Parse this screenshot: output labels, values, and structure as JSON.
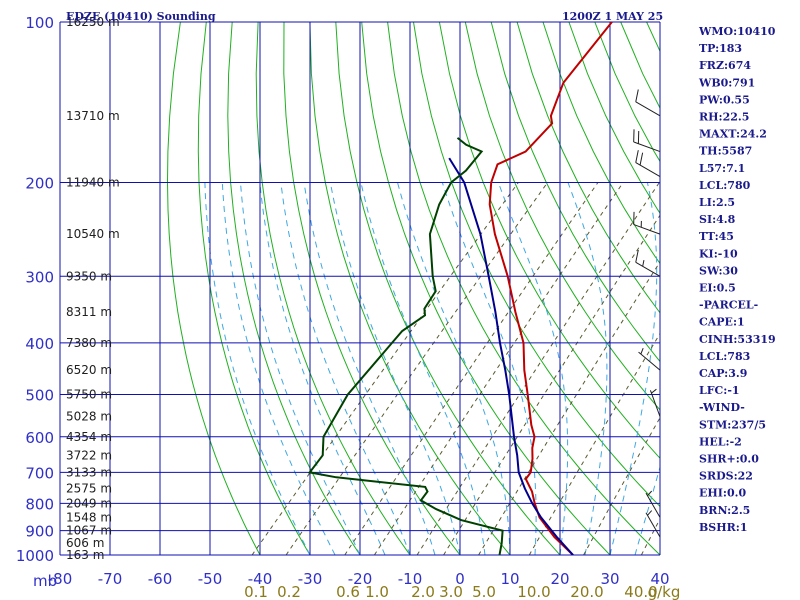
{
  "title": "EDZE (10410) Sounding",
  "time": "1200Z  1 MAY 25",
  "indices": [
    "WMO:10410",
    "TP:183",
    "FRZ:674",
    "WB0:791",
    "PW:0.55",
    "RH:22.5",
    "MAXT:24.2",
    "TH:5587",
    "L57:7.1",
    "LCL:780",
    "LI:2.5",
    "SI:4.8",
    "TT:45",
    "KI:-10",
    "SW:30",
    "EI:0.5",
    "-PARCEL-",
    "CAPE:1",
    "CINH:53319",
    "LCL:783",
    "CAP:3.9",
    "LFC:-1",
    "-WIND-",
    "STM:237/5",
    "HEL:-2",
    "SHR+:0.0",
    "SRDS:22",
    "EHI:0.0",
    "BRN:2.5",
    "BSHR:1"
  ],
  "chart_data": {
    "type": "line",
    "title": "EDZE (10410) Sounding",
    "subtitle": "1200Z  1 MAY 25",
    "xlabel": "",
    "ylabel": "mb",
    "y_scale": "log-pressure",
    "ylim": [
      1000,
      100
    ],
    "xlim": [
      -80,
      40
    ],
    "grid": true,
    "pressure_levels": [
      1000,
      900,
      800,
      700,
      600,
      500,
      400,
      300,
      200,
      100
    ],
    "pressure_tick_labels": [
      "1000",
      "900",
      "800",
      "700",
      "600",
      "500",
      "400",
      "300",
      "200",
      "100"
    ],
    "temperature_ticks": [
      -80,
      -70,
      -60,
      -50,
      -40,
      -30,
      -20,
      -10,
      0,
      10,
      20,
      30,
      40
    ],
    "temperature_tick_labels": [
      "-80",
      "-70",
      "-60",
      "-50",
      "-40",
      "-30",
      "-20",
      "-10",
      "0",
      "10",
      "20",
      "30",
      "40"
    ],
    "mixing_ratio_labels": [
      "0.1",
      "0.2",
      "0.6",
      "1.0",
      "2.0",
      "3.0",
      "5.0",
      "10.0",
      "20.0",
      "40.0",
      "g/kg"
    ],
    "height_labels": [
      {
        "p": 100,
        "label": "16250 m"
      },
      {
        "p": 150,
        "label": "13710 m"
      },
      {
        "p": 200,
        "label": "11940 m"
      },
      {
        "p": 250,
        "label": "10540 m"
      },
      {
        "p": 300,
        "label": "9350 m"
      },
      {
        "p": 350,
        "label": "8311 m"
      },
      {
        "p": 400,
        "label": "7380 m"
      },
      {
        "p": 450,
        "label": "6520 m"
      },
      {
        "p": 500,
        "label": "5750 m"
      },
      {
        "p": 550,
        "label": "5028 m"
      },
      {
        "p": 600,
        "label": "4354 m"
      },
      {
        "p": 650,
        "label": "3722 m"
      },
      {
        "p": 700,
        "label": "3133 m"
      },
      {
        "p": 750,
        "label": "2575 m"
      },
      {
        "p": 800,
        "label": "2049 m"
      },
      {
        "p": 850,
        "label": "1548 m"
      },
      {
        "p": 900,
        "label": "1067 m"
      },
      {
        "p": 950,
        "label": "606 m"
      },
      {
        "p": 1000,
        "label": "163 m"
      }
    ],
    "series": [
      {
        "color": "#c00000",
        "points": [
          [
            1000,
            22.6
          ],
          [
            925,
            15.6
          ],
          [
            850,
            9.1
          ],
          [
            800,
            5.6
          ],
          [
            760,
            2.9
          ],
          [
            720,
            -0.6
          ],
          [
            700,
            -0.8
          ],
          [
            660,
            -2.9
          ],
          [
            630,
            -4.9
          ],
          [
            600,
            -6.5
          ],
          [
            570,
            -9.3
          ],
          [
            500,
            -15.5
          ],
          [
            450,
            -20.6
          ],
          [
            400,
            -25.7
          ],
          [
            350,
            -32.9
          ],
          [
            300,
            -40.9
          ],
          [
            250,
            -51.1
          ],
          [
            220,
            -57.5
          ],
          [
            200,
            -61.2
          ],
          [
            185,
            -63.2
          ],
          [
            175,
            -59.9
          ],
          [
            155,
            -59.7
          ],
          [
            150,
            -61.3
          ],
          [
            130,
            -64.8
          ],
          [
            100,
            -66.1
          ]
        ]
      },
      {
        "color": "#00008c",
        "points": [
          [
            1000,
            22.6
          ],
          [
            925,
            16.1
          ],
          [
            850,
            9.4
          ],
          [
            800,
            5.1
          ],
          [
            750,
            0.9
          ],
          [
            700,
            -3.2
          ],
          [
            650,
            -6.6
          ],
          [
            600,
            -10.6
          ],
          [
            550,
            -14.7
          ],
          [
            500,
            -19.2
          ],
          [
            450,
            -24.4
          ],
          [
            400,
            -30.4
          ],
          [
            350,
            -36.9
          ],
          [
            300,
            -44.7
          ],
          [
            250,
            -54.0
          ],
          [
            200,
            -66.6
          ],
          [
            180,
            -74.0
          ]
        ]
      },
      {
        "color": "#004000",
        "points": [
          [
            1000,
            7.9
          ],
          [
            950,
            6.2
          ],
          [
            900,
            4.1
          ],
          [
            860,
            -6.1
          ],
          [
            820,
            -13.1
          ],
          [
            790,
            -17.7
          ],
          [
            760,
            -18.0
          ],
          [
            745,
            -19.3
          ],
          [
            715,
            -38.8
          ],
          [
            700,
            -45.0
          ],
          [
            650,
            -45.5
          ],
          [
            600,
            -48.7
          ],
          [
            500,
            -51.5
          ],
          [
            400,
            -52.0
          ],
          [
            380,
            -52.1
          ],
          [
            355,
            -50.4
          ],
          [
            345,
            -51.7
          ],
          [
            320,
            -52.6
          ],
          [
            300,
            -55.9
          ],
          [
            250,
            -64.1
          ],
          [
            220,
            -67.6
          ],
          [
            200,
            -69.2
          ],
          [
            190,
            -68.4
          ],
          [
            175,
            -68.7
          ],
          [
            170,
            -73.0
          ],
          [
            165,
            -76.0
          ]
        ]
      }
    ],
    "wind_barbs": [
      {
        "p": 150,
        "dir": 300,
        "speed": 10
      },
      {
        "p": 175,
        "dir": 290,
        "speed": 20
      },
      {
        "p": 195,
        "dir": 300,
        "speed": 20
      },
      {
        "p": 250,
        "dir": 290,
        "speed": 15
      },
      {
        "p": 300,
        "dir": 300,
        "speed": 15
      },
      {
        "p": 450,
        "dir": 310,
        "speed": 5
      },
      {
        "p": 550,
        "dir": 340,
        "speed": 5
      },
      {
        "p": 850,
        "dir": 330,
        "speed": 5
      },
      {
        "p": 925,
        "dir": 330,
        "speed": 5
      }
    ]
  }
}
